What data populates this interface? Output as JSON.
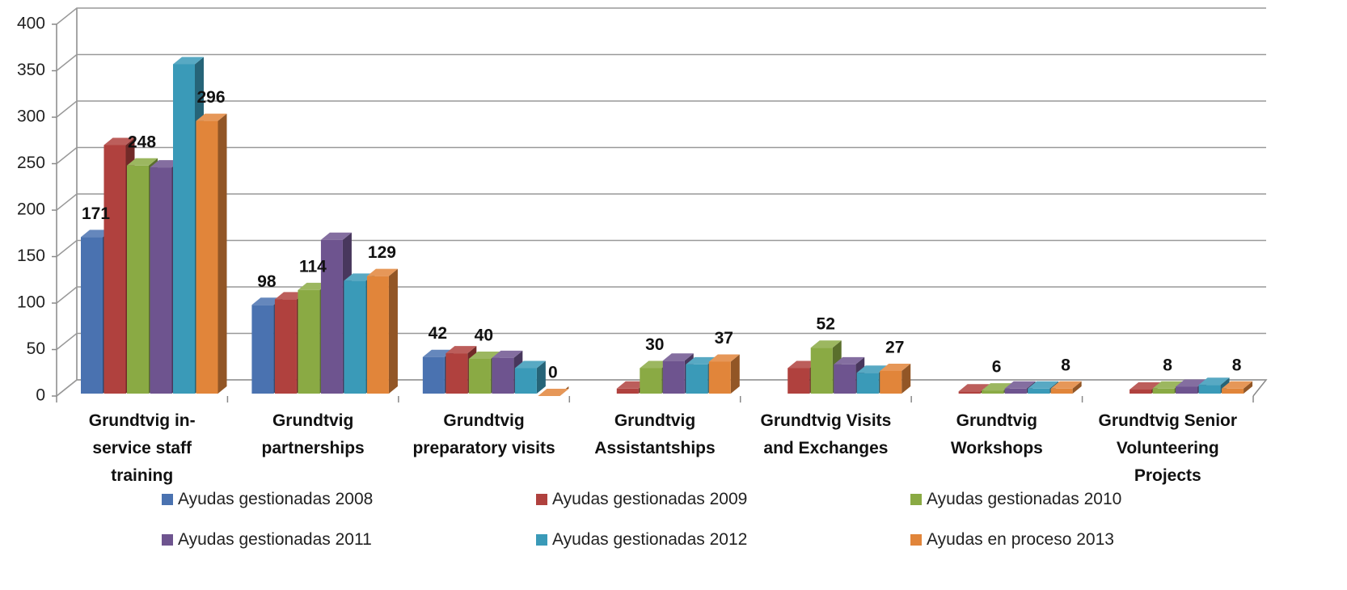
{
  "chart_data": {
    "type": "bar3d",
    "categories": [
      "Grundtvig in-service staff training",
      "Grundtvig partnerships",
      "Grundtvig preparatory visits",
      "Grundtvig Assistantships",
      "Grundtvig Visits and Exchanges",
      "Grundtvig Workshops",
      "Grundtvig Senior Volunteering Projects"
    ],
    "series": [
      {
        "name": "Ayudas gestionadas 2008",
        "color": "#4a72b0",
        "data_labels": true,
        "values": [
          171,
          98,
          42,
          null,
          null,
          null,
          null
        ]
      },
      {
        "name": "Ayudas gestionadas 2009",
        "color": "#b0413e",
        "data_labels": false,
        "values": [
          270,
          104,
          46,
          8,
          30,
          5,
          7
        ]
      },
      {
        "name": "Ayudas gestionadas 2010",
        "color": "#8aaa44",
        "data_labels": true,
        "values": [
          248,
          114,
          40,
          30,
          52,
          6,
          8
        ]
      },
      {
        "name": "Ayudas gestionadas 2011",
        "color": "#6e548f",
        "data_labels": false,
        "values": [
          246,
          168,
          41,
          38,
          34,
          8,
          10
        ]
      },
      {
        "name": "Ayudas gestionadas 2012",
        "color": "#3a9ab8",
        "data_labels": false,
        "values": [
          357,
          124,
          30,
          34,
          25,
          8,
          12
        ]
      },
      {
        "name": "Ayudas en proceso 2013",
        "color": "#e1853a",
        "data_labels": true,
        "values": [
          296,
          129,
          0,
          37,
          27,
          8,
          8
        ]
      }
    ],
    "ylim": [
      0,
      400
    ],
    "yticks": [
      0,
      50,
      100,
      150,
      200,
      250,
      300,
      350,
      400
    ],
    "grid": true,
    "legend": "bottom"
  }
}
